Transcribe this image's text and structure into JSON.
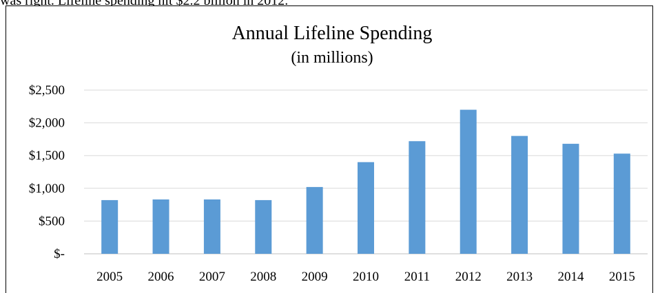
{
  "page": {
    "snippet_text": "was right.  Lifeline spending hit $2.2 billion in 2012."
  },
  "chart_data": {
    "type": "bar",
    "title": "Annual Lifeline  Spending",
    "subtitle": "(in millions)",
    "categories": [
      "2005",
      "2006",
      "2007",
      "2008",
      "2009",
      "2010",
      "2011",
      "2012",
      "2013",
      "2014",
      "2015"
    ],
    "values": [
      820,
      830,
      830,
      820,
      1020,
      1400,
      1720,
      2200,
      1800,
      1680,
      1530
    ],
    "ylim": [
      0,
      2500
    ],
    "yticks": [
      0,
      500,
      1000,
      1500,
      2000,
      2500
    ],
    "ytick_labels": [
      "$-",
      "$500",
      "$1,000",
      "$1,500",
      "$2,000",
      "$2,500"
    ],
    "grid": true,
    "bar_color": "#5b9bd5"
  }
}
